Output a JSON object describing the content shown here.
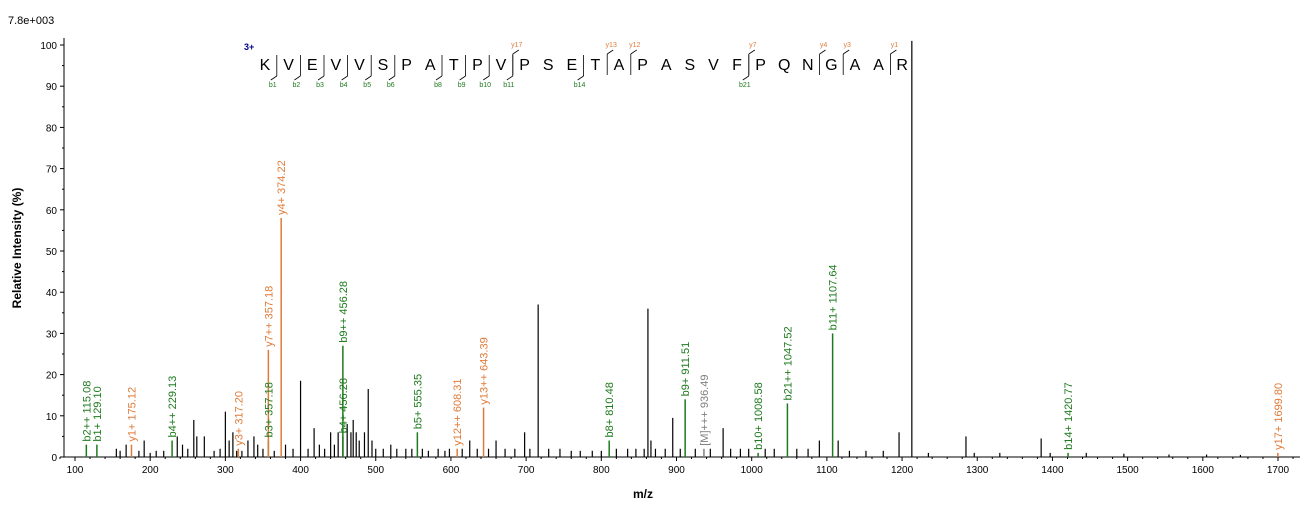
{
  "chart_data": {
    "type": "bar",
    "title": "",
    "max_intensity_label": "7.8e+003",
    "xlabel": "m/z",
    "ylabel": "Relative Intensity (%)",
    "xlim": [
      70,
      1725
    ],
    "ylim": [
      0,
      101
    ],
    "x_ticks": [
      100,
      200,
      300,
      400,
      500,
      600,
      700,
      800,
      900,
      1000,
      1100,
      1200,
      1300,
      1400,
      1500,
      1600,
      1700
    ],
    "y_ticks": [
      0,
      10,
      20,
      30,
      40,
      50,
      60,
      70,
      80,
      90,
      100
    ],
    "colors": {
      "b": "#1e7a1e",
      "y": "#e07b39",
      "other": "#808080",
      "unlabeled": "#000000",
      "charge": "#00008b"
    },
    "labeled_peaks": [
      {
        "mz": 115.08,
        "intensity": 3,
        "ion": "b",
        "label": "b2++ 115.08"
      },
      {
        "mz": 129.1,
        "intensity": 3,
        "ion": "b",
        "label": "b1+ 129.10"
      },
      {
        "mz": 175.12,
        "intensity": 3,
        "ion": "y",
        "label": "y1+ 175.12"
      },
      {
        "mz": 229.13,
        "intensity": 4,
        "ion": "b",
        "label": "b4++ 229.13"
      },
      {
        "mz": 317.2,
        "intensity": 2,
        "ion": "y",
        "label": "y3+ 317.20"
      },
      {
        "mz": 357.18,
        "intensity": 4,
        "ion": "b",
        "label": "b3+ 357.18"
      },
      {
        "mz": 357.18,
        "intensity": 26,
        "ion": "y",
        "label": "y7++ 357.18"
      },
      {
        "mz": 374.22,
        "intensity": 58,
        "ion": "y",
        "label": "y4+ 374.22"
      },
      {
        "mz": 456.28,
        "intensity": 5,
        "ion": "b",
        "label": "b4+ 456.28"
      },
      {
        "mz": 456.28,
        "intensity": 27,
        "ion": "b",
        "label": "b9++ 456.28"
      },
      {
        "mz": 555.35,
        "intensity": 6,
        "ion": "b",
        "label": "b5+ 555.35"
      },
      {
        "mz": 608.31,
        "intensity": 2,
        "ion": "y",
        "label": "y12++ 608.31"
      },
      {
        "mz": 643.39,
        "intensity": 12,
        "ion": "y",
        "label": "y13++ 643.39"
      },
      {
        "mz": 810.48,
        "intensity": 4,
        "ion": "b",
        "label": "b8+ 810.48"
      },
      {
        "mz": 911.51,
        "intensity": 14,
        "ion": "b",
        "label": "b9+ 911.51"
      },
      {
        "mz": 936.49,
        "intensity": 2,
        "ion": "other",
        "label": "[M]+++ 936.49"
      },
      {
        "mz": 1008.58,
        "intensity": 1,
        "ion": "b",
        "label": "b10+ 1008.58"
      },
      {
        "mz": 1047.52,
        "intensity": 13,
        "ion": "b",
        "label": "b21++ 1047.52"
      },
      {
        "mz": 1107.64,
        "intensity": 30,
        "ion": "b",
        "label": "b11+ 1107.64"
      },
      {
        "mz": 1420.77,
        "intensity": 1,
        "ion": "b",
        "label": "b14+ 1420.77"
      },
      {
        "mz": 1699.8,
        "intensity": 1,
        "ion": "y",
        "label": "y17+ 1699.80"
      }
    ],
    "unlabeled_peaks": [
      [
        155,
        2
      ],
      [
        160,
        1.5
      ],
      [
        168,
        3
      ],
      [
        185,
        1.5
      ],
      [
        192,
        4
      ],
      [
        200,
        1
      ],
      [
        208,
        1.5
      ],
      [
        218,
        1.5
      ],
      [
        236,
        5
      ],
      [
        243,
        3
      ],
      [
        250,
        2
      ],
      [
        258,
        9
      ],
      [
        262,
        5
      ],
      [
        272,
        5
      ],
      [
        285,
        1.5
      ],
      [
        293,
        2
      ],
      [
        300,
        11
      ],
      [
        305,
        4
      ],
      [
        310,
        6
      ],
      [
        315,
        1.5
      ],
      [
        322,
        1.5
      ],
      [
        330,
        4
      ],
      [
        338,
        5
      ],
      [
        343,
        3
      ],
      [
        350,
        2
      ],
      [
        365,
        1.5
      ],
      [
        380,
        3
      ],
      [
        390,
        2
      ],
      [
        400,
        18.5
      ],
      [
        410,
        2
      ],
      [
        418,
        7
      ],
      [
        425,
        3
      ],
      [
        432,
        2
      ],
      [
        440,
        6
      ],
      [
        445,
        3
      ],
      [
        450,
        6
      ],
      [
        462,
        8
      ],
      [
        467,
        6
      ],
      [
        470,
        9
      ],
      [
        474,
        6
      ],
      [
        478,
        4
      ],
      [
        485,
        6
      ],
      [
        490,
        16.5
      ],
      [
        495,
        4
      ],
      [
        500,
        2
      ],
      [
        510,
        2
      ],
      [
        520,
        3
      ],
      [
        528,
        2
      ],
      [
        540,
        2
      ],
      [
        548,
        2
      ],
      [
        562,
        2
      ],
      [
        570,
        1.5
      ],
      [
        583,
        2
      ],
      [
        592,
        1.5
      ],
      [
        598,
        2
      ],
      [
        615,
        2
      ],
      [
        625,
        4
      ],
      [
        635,
        2
      ],
      [
        650,
        2
      ],
      [
        660,
        4
      ],
      [
        672,
        2
      ],
      [
        685,
        2
      ],
      [
        698,
        6
      ],
      [
        705,
        2
      ],
      [
        716,
        37
      ],
      [
        730,
        2
      ],
      [
        745,
        2
      ],
      [
        760,
        1.5
      ],
      [
        772,
        1.5
      ],
      [
        788,
        1.5
      ],
      [
        800,
        1.5
      ],
      [
        820,
        2
      ],
      [
        835,
        2
      ],
      [
        846,
        2
      ],
      [
        857,
        2
      ],
      [
        862,
        36
      ],
      [
        866,
        4
      ],
      [
        872,
        2
      ],
      [
        885,
        2
      ],
      [
        895,
        9.5
      ],
      [
        905,
        2
      ],
      [
        925,
        2
      ],
      [
        945,
        2
      ],
      [
        962,
        7
      ],
      [
        972,
        2
      ],
      [
        985,
        2
      ],
      [
        996,
        2
      ],
      [
        1018,
        2
      ],
      [
        1030,
        2
      ],
      [
        1060,
        2
      ],
      [
        1075,
        2
      ],
      [
        1090,
        4
      ],
      [
        1115,
        4
      ],
      [
        1130,
        1.5
      ],
      [
        1152,
        1.5
      ],
      [
        1175,
        1.5
      ],
      [
        1196,
        6
      ],
      [
        1213,
        101
      ],
      [
        1235,
        1
      ],
      [
        1285,
        5
      ],
      [
        1296,
        1
      ],
      [
        1330,
        1
      ],
      [
        1385,
        4.5
      ],
      [
        1397,
        1
      ],
      [
        1445,
        1
      ],
      [
        1495,
        0.8
      ],
      [
        1555,
        0.6
      ],
      [
        1605,
        0.6
      ],
      [
        1650,
        0.5
      ]
    ]
  },
  "sequence": {
    "charge": "3+",
    "letters": [
      "K",
      "V",
      "E",
      "V",
      "V",
      "S",
      "P",
      "A",
      "T",
      "P",
      "V",
      "P",
      "S",
      "E",
      "T",
      "A",
      "P",
      "A",
      "S",
      "V",
      "F",
      "P",
      "Q",
      "N",
      "G",
      "A",
      "A",
      "R"
    ],
    "b_marks": [
      {
        "after": 1,
        "label": "b1"
      },
      {
        "after": 2,
        "label": "b2"
      },
      {
        "after": 3,
        "label": "b3"
      },
      {
        "after": 4,
        "label": "b4"
      },
      {
        "after": 5,
        "label": "b5"
      },
      {
        "after": 6,
        "label": "b6"
      },
      {
        "after": 8,
        "label": "b8"
      },
      {
        "after": 9,
        "label": "b9"
      },
      {
        "after": 10,
        "label": "b10"
      },
      {
        "after": 11,
        "label": "b11"
      },
      {
        "after": 14,
        "label": "b14"
      },
      {
        "after": 21,
        "label": "b21"
      }
    ],
    "y_marks": [
      {
        "after": 11,
        "label": "y17"
      },
      {
        "after": 15,
        "label": "y13"
      },
      {
        "after": 16,
        "label": "y12"
      },
      {
        "after": 21,
        "label": "y7"
      },
      {
        "after": 24,
        "label": "y4"
      },
      {
        "after": 25,
        "label": "y3"
      },
      {
        "after": 27,
        "label": "y1"
      }
    ]
  }
}
